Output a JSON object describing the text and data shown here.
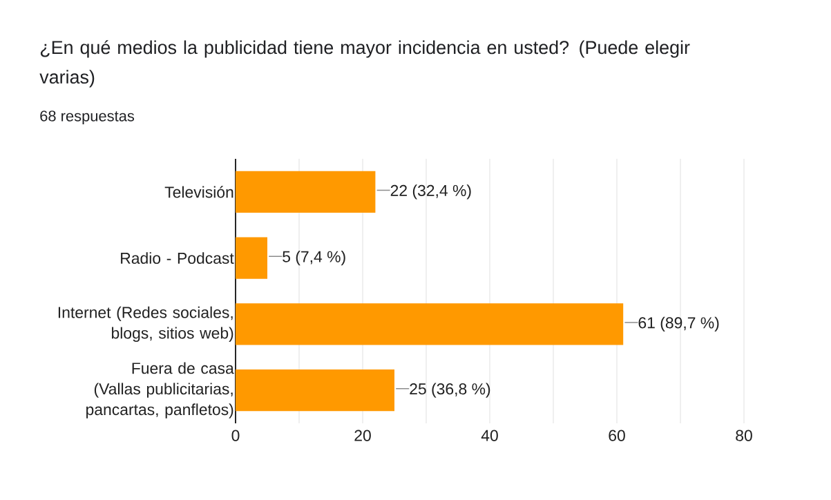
{
  "chart_data": {
    "type": "bar",
    "orientation": "horizontal",
    "title": "¿En qué medios la publicidad tiene mayor incidencia en usted? (Puede elegir varias)",
    "subtitle": "68 respuestas",
    "categories": [
      "Televisión",
      "Radio - Podcast",
      "Internet (Redes sociales, blogs, sitios web)",
      "Fuera de casa (Vallas publicitarias, pancartas, panfletos)"
    ],
    "values": [
      22,
      5,
      61,
      25
    ],
    "value_labels": [
      "22 (32,4 %)",
      "5 (7,4 %)",
      "61 (89,7 %)",
      "25 (36,8 %)"
    ],
    "color": "#ff9900",
    "xlim": [
      0,
      80
    ],
    "xticks": [
      0,
      {
        "value": 10,
        "label": null
      },
      20,
      {
        "value": 30,
        "label": null
      },
      40,
      {
        "value": 50,
        "label": null
      },
      60,
      {
        "value": 70,
        "label": null
      },
      80
    ],
    "grid": "x"
  }
}
